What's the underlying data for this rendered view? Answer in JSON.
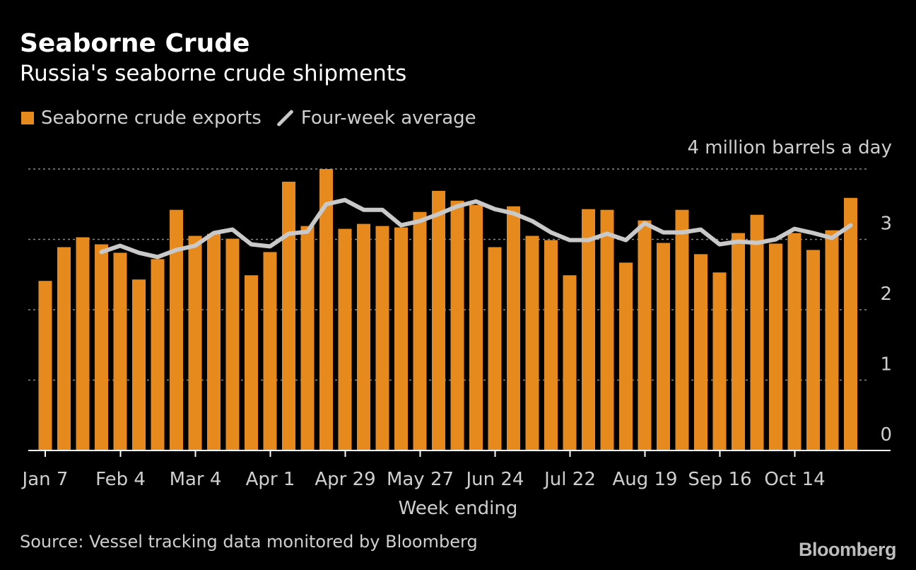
{
  "title": "Seaborne Crude",
  "subtitle": "Russia's seaborne crude shipments",
  "legend": {
    "bars_label": "Seaborne crude exports",
    "line_label": "Four-week average"
  },
  "unit_label": "4 million barrels a day",
  "source": "Source: Vessel tracking data monitored by Bloomberg",
  "brand": "Bloomberg",
  "colors": {
    "bar": "#e68a1e",
    "line": "#c9c9c9",
    "grid": "#8a8a8a",
    "axis": "#ffffff",
    "text": "#cfcfcf",
    "background": "#000000"
  },
  "chart_data": {
    "type": "bar",
    "title": "Seaborne Crude",
    "subtitle": "Russia's seaborne crude shipments",
    "xlabel": "Week ending",
    "ylabel": "4 million barrels a day",
    "ylim": [
      0,
      4
    ],
    "yticks": [
      0,
      1,
      2,
      3
    ],
    "grid": true,
    "legend_position": "top-left",
    "x_tick_labels": [
      "Jan 7",
      "Feb 4",
      "Mar 4",
      "Apr 1",
      "Apr 29",
      "May 27",
      "Jun 24",
      "Jul 22",
      "Aug 19",
      "Sep 16",
      "Oct 14"
    ],
    "x_tick_every": 4,
    "series": [
      {
        "name": "Seaborne crude exports",
        "type": "bar",
        "values": [
          2.41,
          2.89,
          3.03,
          2.93,
          2.81,
          2.43,
          2.72,
          3.42,
          3.05,
          3.08,
          3.01,
          2.49,
          2.82,
          3.82,
          3.19,
          4.0,
          3.15,
          3.22,
          3.19,
          3.17,
          3.39,
          3.69,
          3.55,
          3.49,
          2.89,
          3.47,
          3.05,
          2.99,
          2.49,
          3.43,
          3.42,
          2.67,
          3.27,
          2.95,
          3.42,
          2.79,
          2.53,
          3.09,
          3.35,
          2.94,
          3.09,
          2.85,
          3.13,
          3.59
        ]
      },
      {
        "name": "Four-week average",
        "type": "line",
        "start_index": 3,
        "values": [
          2.82,
          2.91,
          2.81,
          2.75,
          2.85,
          2.91,
          3.09,
          3.14,
          2.93,
          2.9,
          3.08,
          3.11,
          3.5,
          3.56,
          3.42,
          3.42,
          3.2,
          3.26,
          3.36,
          3.47,
          3.54,
          3.43,
          3.37,
          3.26,
          3.1,
          2.99,
          2.99,
          3.08,
          2.99,
          3.23,
          3.1,
          3.1,
          3.14,
          2.93,
          2.97,
          2.95,
          3.0,
          3.15,
          3.09,
          3.02,
          3.2
        ]
      }
    ]
  }
}
